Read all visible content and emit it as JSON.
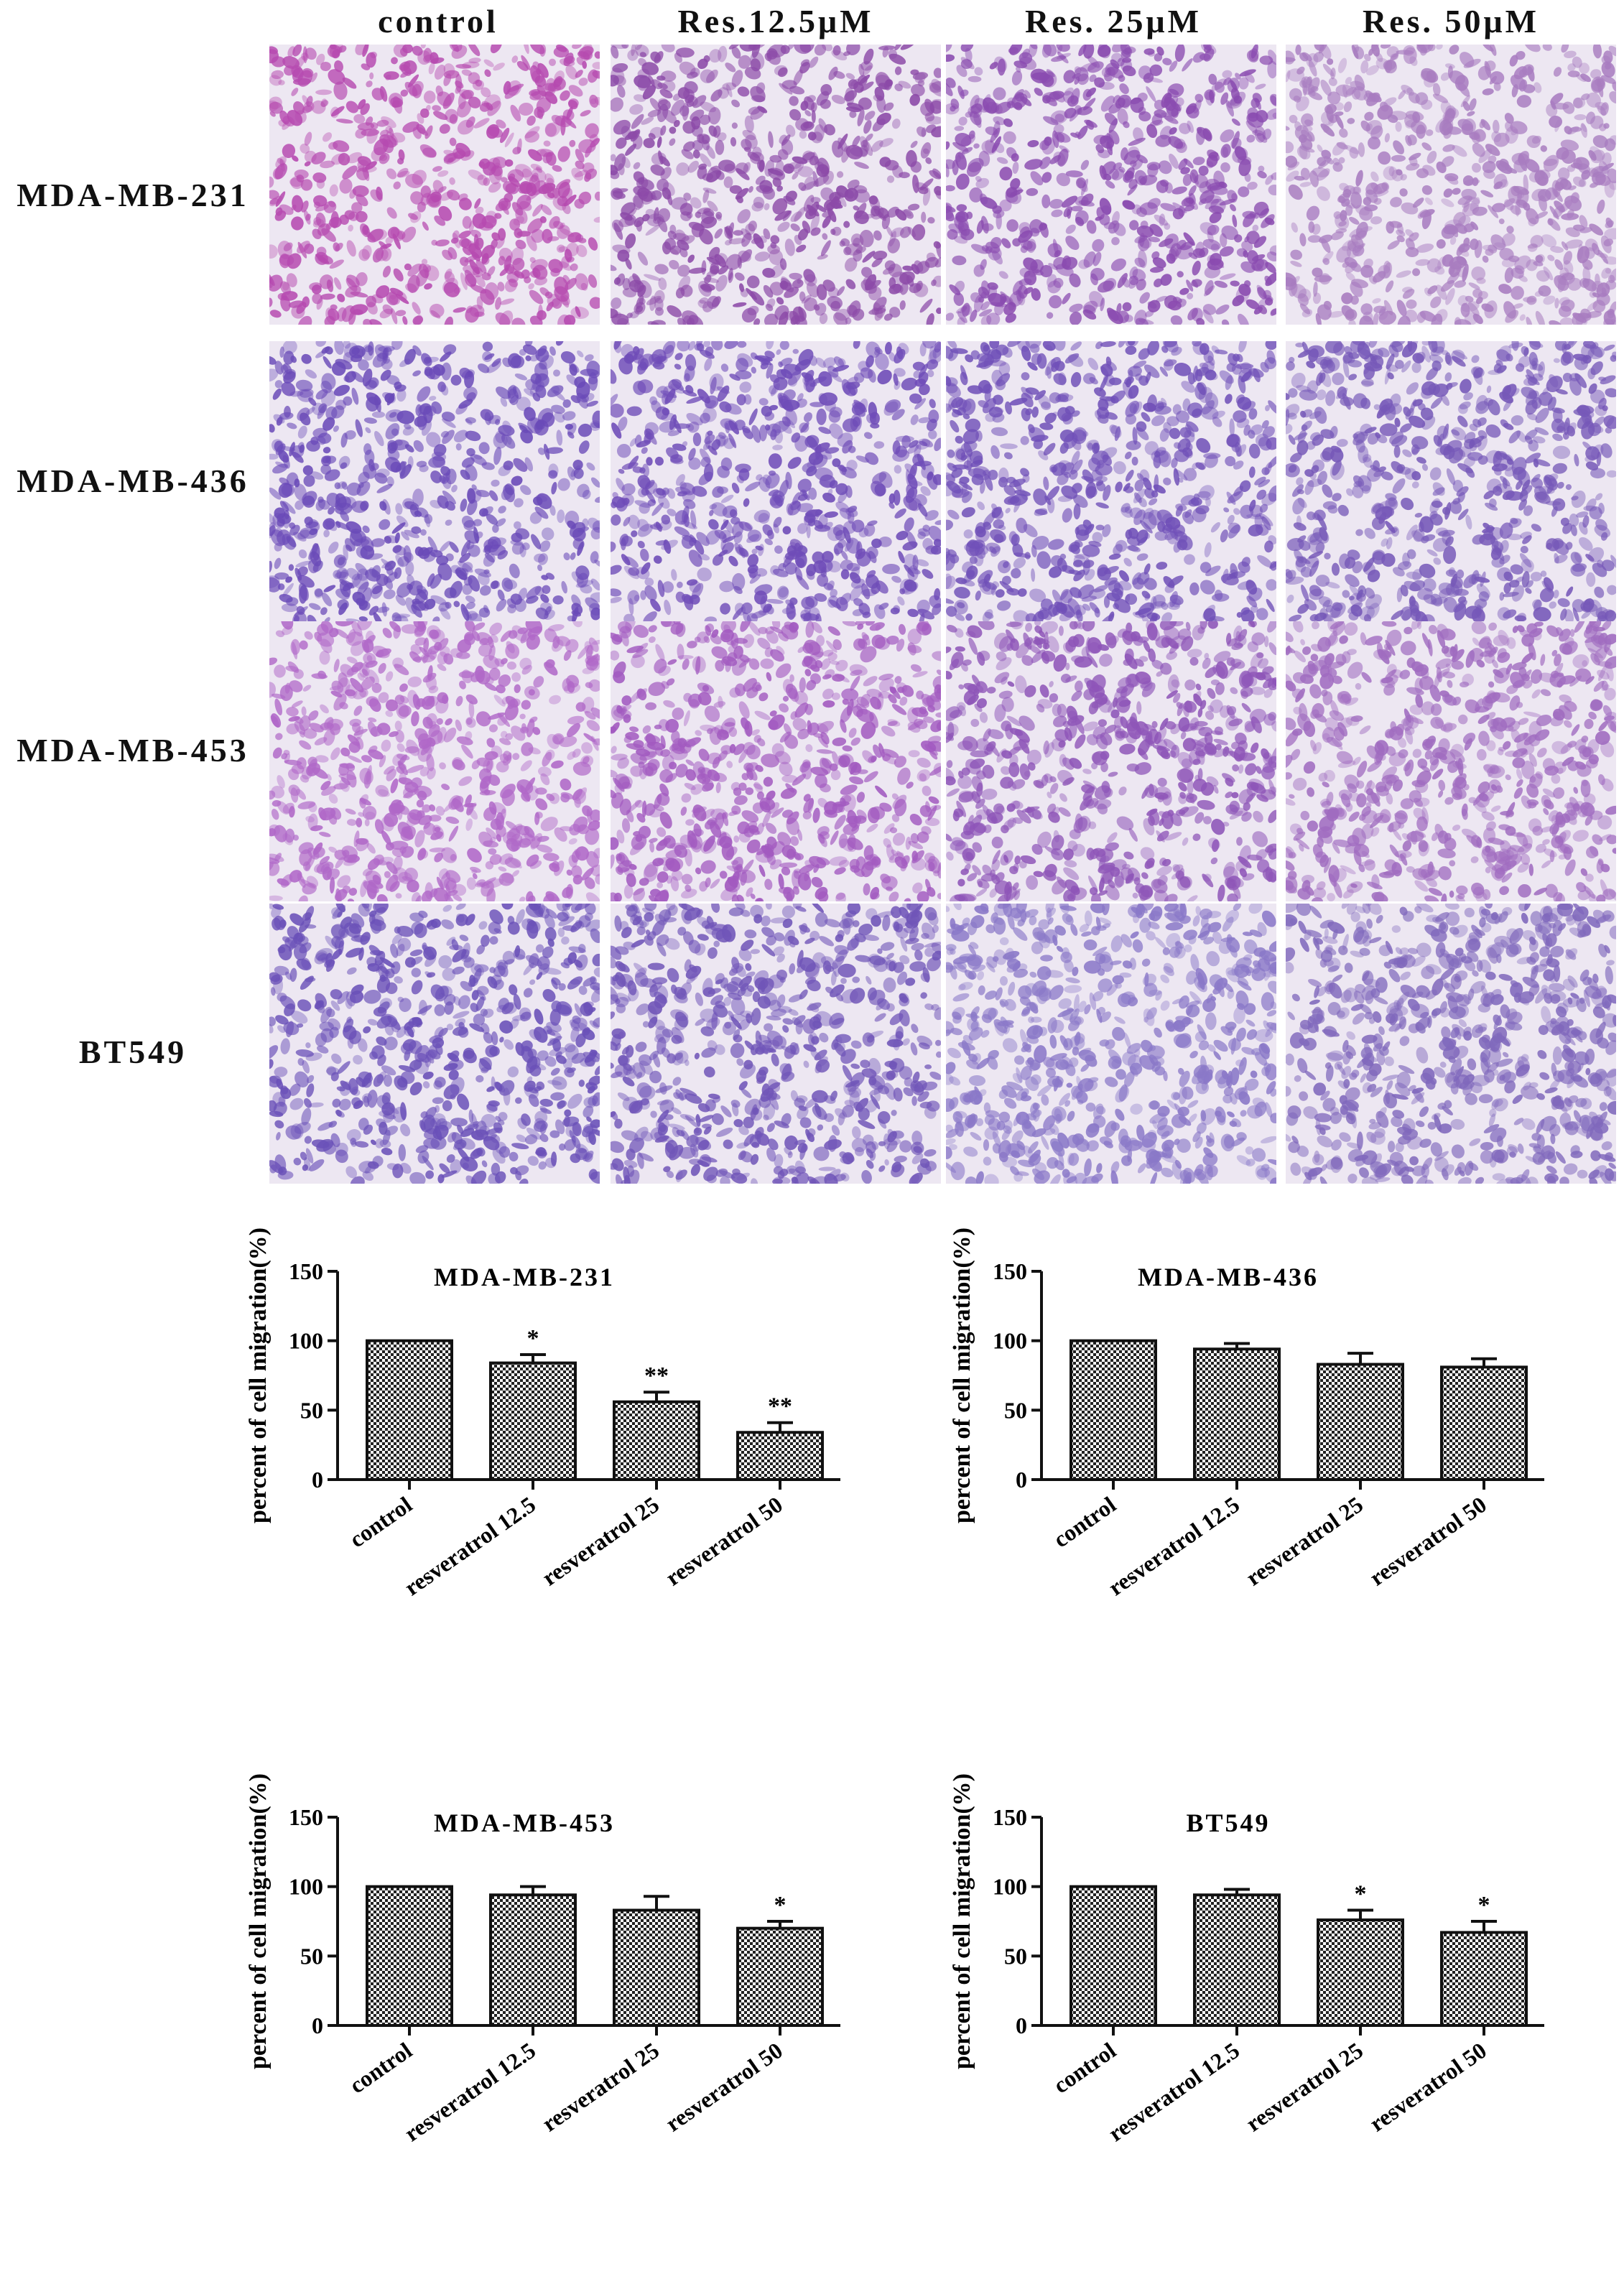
{
  "columns": [
    "control",
    "Res.12.5μM",
    "Res. 25μM",
    "Res. 50μM"
  ],
  "rows": [
    {
      "label": "MDA-MB-231",
      "colors": [
        "#b64ab0",
        "#8c4aa8",
        "#8a4bb0",
        "#a87cc0"
      ]
    },
    {
      "label": "MDA-MB-436",
      "colors": [
        "#6a4ab8",
        "#6f4cb8",
        "#7050b8",
        "#7658b8"
      ]
    },
    {
      "label": "MDA-MB-453",
      "colors": [
        "#b068c8",
        "#a25ac0",
        "#8e55b8",
        "#a06cc0"
      ]
    },
    {
      "label": "BT549",
      "colors": [
        "#6a50b8",
        "#7055b8",
        "#8a78c8",
        "#8068bc"
      ]
    }
  ],
  "chart_data": [
    {
      "type": "bar",
      "title": "MDA-MB-231",
      "ylabel": "percent of cell migration(%)",
      "categories": [
        "control",
        "resveratrol 12.5",
        "resveratrol 25",
        "resveratrol 50"
      ],
      "values": [
        100,
        84,
        56,
        34
      ],
      "errors": [
        0,
        6,
        7,
        7
      ],
      "significance": [
        "",
        "*",
        "**",
        "**"
      ],
      "ylim": [
        0,
        150
      ],
      "yticks": [
        0,
        50,
        100,
        150
      ]
    },
    {
      "type": "bar",
      "title": "MDA-MB-436",
      "ylabel": "percent of cell migration(%)",
      "categories": [
        "control",
        "resveratrol 12.5",
        "resveratrol 25",
        "resveratrol 50"
      ],
      "values": [
        100,
        94,
        83,
        81
      ],
      "errors": [
        0,
        4,
        8,
        6
      ],
      "significance": [
        "",
        "",
        "",
        ""
      ],
      "ylim": [
        0,
        150
      ],
      "yticks": [
        0,
        50,
        100,
        150
      ]
    },
    {
      "type": "bar",
      "title": "MDA-MB-453",
      "ylabel": "percent of cell migration(%)",
      "categories": [
        "control",
        "resveratrol 12.5",
        "resveratrol 25",
        "resveratrol 50"
      ],
      "values": [
        100,
        94,
        83,
        70
      ],
      "errors": [
        0,
        6,
        10,
        5
      ],
      "significance": [
        "",
        "",
        "",
        "*"
      ],
      "ylim": [
        0,
        150
      ],
      "yticks": [
        0,
        50,
        100,
        150
      ]
    },
    {
      "type": "bar",
      "title": "BT549",
      "ylabel": "percent of cell migration(%)",
      "categories": [
        "control",
        "resveratrol 12.5",
        "resveratrol 25",
        "resveratrol 50"
      ],
      "values": [
        100,
        94,
        76,
        67
      ],
      "errors": [
        0,
        4,
        7,
        8
      ],
      "significance": [
        "",
        "",
        "*",
        "*"
      ],
      "ylim": [
        0,
        150
      ],
      "yticks": [
        0,
        50,
        100,
        150
      ]
    }
  ]
}
